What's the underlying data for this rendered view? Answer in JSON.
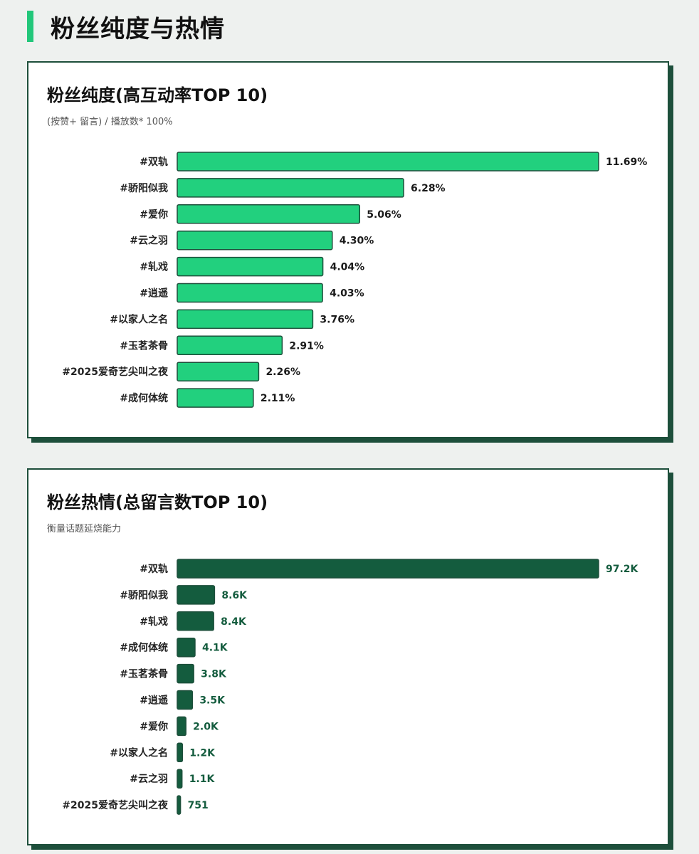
{
  "page": {
    "title": "粉丝纯度与热情",
    "accent_color": "#22c77a",
    "frame_color": "#1d4f3b"
  },
  "chart_data": [
    {
      "type": "bar",
      "orientation": "horizontal",
      "title": "粉丝纯度(高互动率TOP 10)",
      "subtitle": "(按赞+ 留言) / 播放数* 100%",
      "categories": [
        "#双轨",
        "#骄阳似我",
        "#爱你",
        "#云之羽",
        "#轧戏",
        "#逍遥",
        "#以家人之名",
        "#玉茗茶骨",
        "#2025爱奇艺尖叫之夜",
        "#成何体统"
      ],
      "values": [
        11.69,
        6.28,
        5.06,
        4.3,
        4.04,
        4.03,
        3.76,
        2.91,
        2.26,
        2.11
      ],
      "value_labels": [
        "11.69%",
        "6.28%",
        "5.06%",
        "4.30%",
        "4.04%",
        "4.03%",
        "3.76%",
        "2.91%",
        "2.26%",
        "2.11%"
      ],
      "bar_color": "#22d07e",
      "label_color": "#1a1a1a",
      "grid": false,
      "xlim": [
        0,
        11.69
      ]
    },
    {
      "type": "bar",
      "orientation": "horizontal",
      "title": "粉丝热情(总留言数TOP 10)",
      "subtitle": "衡量话题延烧能力",
      "categories": [
        "#双轨",
        "#骄阳似我",
        "#轧戏",
        "#成何体统",
        "#玉茗茶骨",
        "#逍遥",
        "#爱你",
        "#以家人之名",
        "#云之羽",
        "#2025爱奇艺尖叫之夜"
      ],
      "values": [
        97200,
        8600,
        8400,
        4100,
        3800,
        3500,
        2000,
        1200,
        1100,
        751
      ],
      "value_labels": [
        "97.2K",
        "8.6K",
        "8.4K",
        "4.1K",
        "3.8K",
        "3.5K",
        "2.0K",
        "1.2K",
        "1.1K",
        "751"
      ],
      "bar_color": "#145c3e",
      "label_color": "#145c3e",
      "grid": false,
      "xlim": [
        0,
        97200
      ]
    }
  ]
}
